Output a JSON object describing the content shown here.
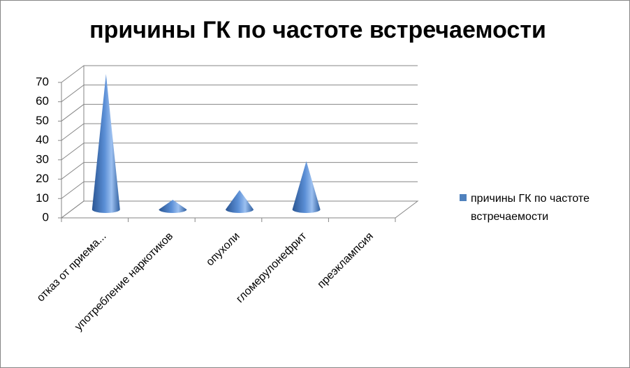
{
  "chart_data": {
    "type": "bar",
    "title": "причины ГК по частоте встречаемости",
    "categories": [
      "отказ от приема...",
      "употребление наркотиков",
      "опухоли",
      "гломерулонефрит",
      "преэклампсия"
    ],
    "series": [
      {
        "name": "причины ГК по частоте встречаемости",
        "color": "#4f81bd",
        "values": [
          70,
          5,
          10,
          25,
          0
        ]
      }
    ],
    "ylim": [
      0,
      70
    ],
    "yticks": [
      0,
      10,
      20,
      30,
      40,
      50,
      60,
      70
    ],
    "grid": true,
    "legend": "right"
  }
}
